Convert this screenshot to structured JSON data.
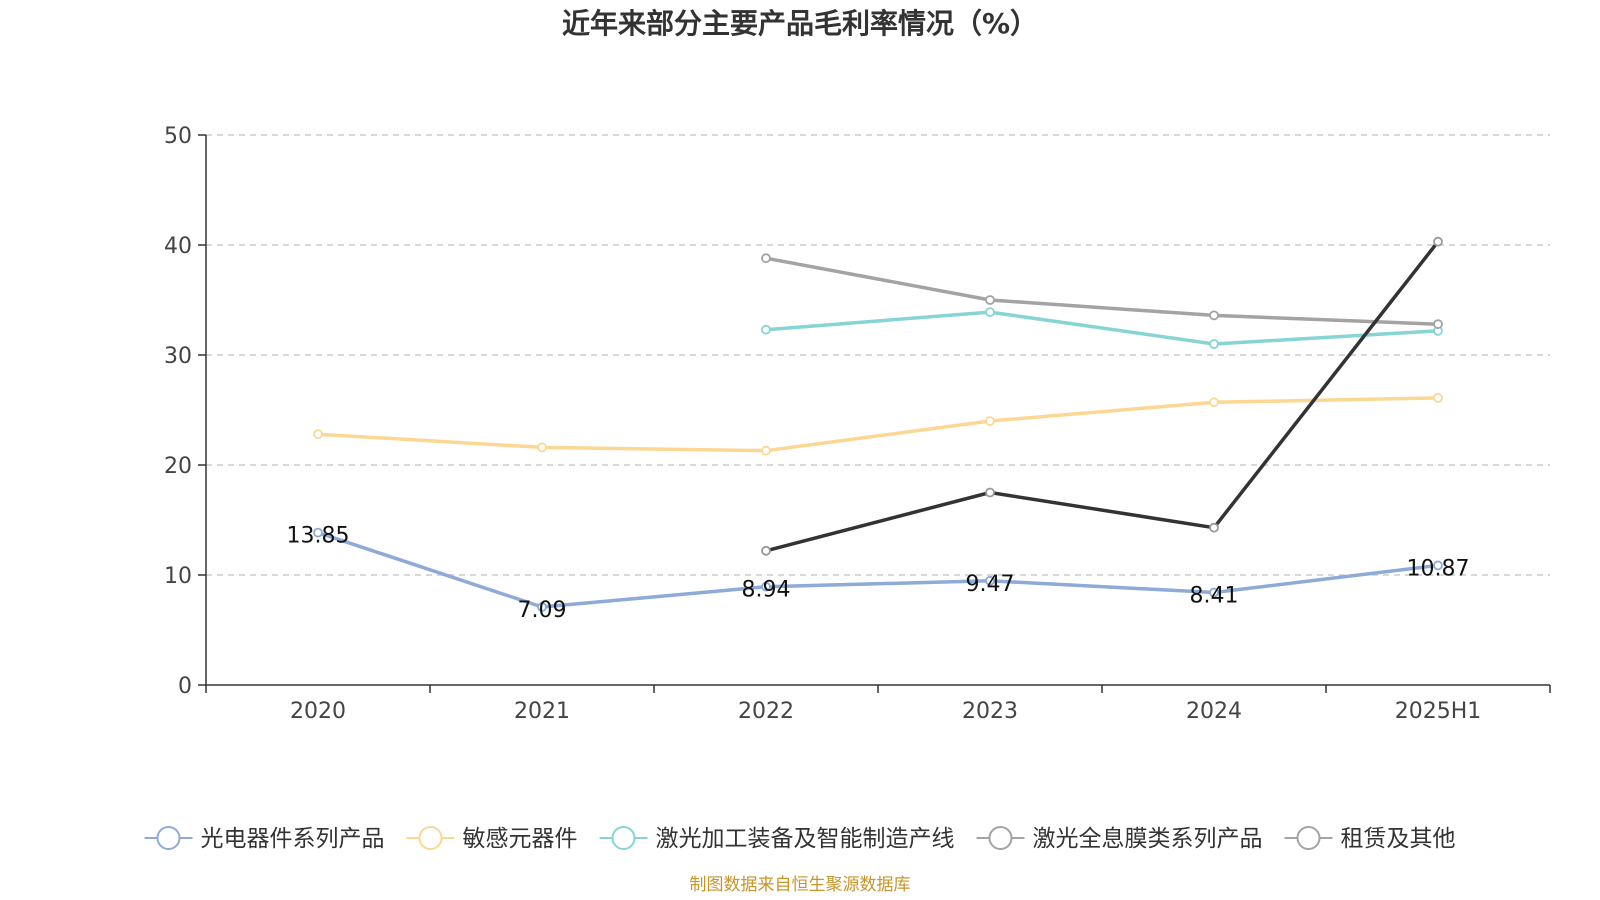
{
  "chart_data": {
    "type": "line",
    "title": "近年来部分主要产品毛利率情况（%）",
    "xlabel": "",
    "ylabel": "",
    "categories": [
      "2020",
      "2021",
      "2022",
      "2023",
      "2024",
      "2025H1"
    ],
    "ylim": [
      0,
      50
    ],
    "yticks": [
      0,
      10,
      20,
      30,
      40,
      50
    ],
    "grid": "horizontal-dashed",
    "legend_position": "bottom",
    "series": [
      {
        "name": "光电器件系列产品",
        "color": "#8eaad8",
        "values": [
          13.85,
          7.09,
          8.94,
          9.47,
          8.41,
          10.87
        ],
        "show_labels": true
      },
      {
        "name": "敏感元器件",
        "color": "#fcd794",
        "values": [
          22.8,
          21.6,
          21.3,
          24.0,
          25.7,
          26.1
        ],
        "show_labels": false
      },
      {
        "name": "激光加工装备及智能制造产线",
        "color": "#86d4d4",
        "values": [
          null,
          null,
          32.3,
          33.9,
          31.0,
          32.2
        ],
        "show_labels": false
      },
      {
        "name": "激光全息膜类系列产品",
        "color": "#a3a3a3",
        "values": [
          null,
          null,
          38.8,
          35.0,
          33.6,
          32.8
        ],
        "show_labels": false
      },
      {
        "name": "租赁及其他",
        "color": "#333333",
        "legend_color": "#a3a3a3",
        "values": [
          null,
          null,
          12.2,
          17.5,
          14.3,
          40.3
        ],
        "show_labels": false
      }
    ],
    "source": "制图数据来自恒生聚源数据库"
  }
}
